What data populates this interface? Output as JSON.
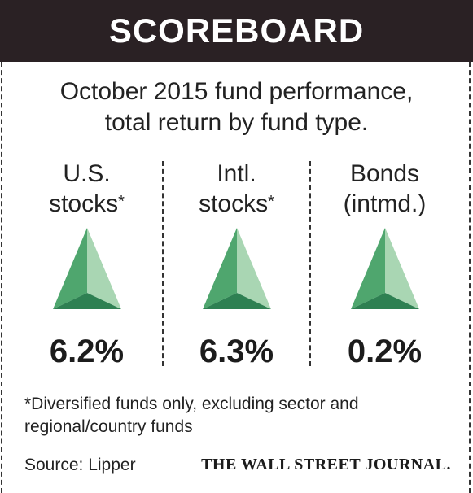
{
  "header": {
    "title": "SCOREBOARD",
    "background": "#2a2124"
  },
  "subtitle": {
    "line1": "October 2015 fund performance,",
    "line2": "total return by fund type."
  },
  "columns": [
    {
      "label_line1": "U.S.",
      "label_line2": "stocks",
      "marker": "*",
      "value": "6.2%",
      "icon": "green-up-triangle-icon"
    },
    {
      "label_line1": "Intl.",
      "label_line2": "stocks",
      "marker": "*",
      "value": "6.3%",
      "icon": "green-up-triangle-icon"
    },
    {
      "label_line1": "Bonds",
      "label_line2": "(intmd.)",
      "marker": "",
      "value": "0.2%",
      "icon": "green-up-triangle-icon"
    }
  ],
  "footnote": {
    "line1": "*Diversified funds only, excluding sector and",
    "line2": "regional/country funds"
  },
  "source": "Source: Lipper",
  "brand": "THE WALL STREET JOURNAL.",
  "colors": {
    "triangle_light": "#a9d6b3",
    "triangle_mid": "#4fa66e",
    "triangle_dark": "#2e8052"
  }
}
